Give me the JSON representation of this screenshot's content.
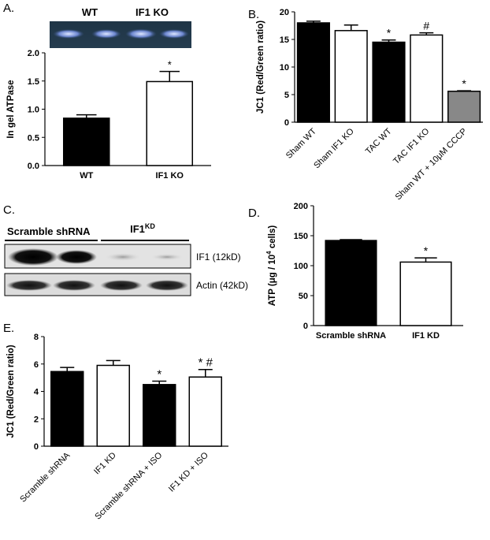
{
  "panels": {
    "A": {
      "label": "A.",
      "gel_lanes_header": [
        "WT",
        "IF1 KO"
      ],
      "chart_data": {
        "type": "bar",
        "categories": [
          "WT",
          "IF1 KO"
        ],
        "values": [
          0.84,
          1.49
        ],
        "errors": [
          0.06,
          0.18
        ],
        "fills": [
          "#000000",
          "#ffffff"
        ],
        "significance": [
          "",
          "*"
        ],
        "ylabel": "In gel ATPase",
        "ylim": [
          0,
          2.0
        ],
        "yticks": [
          "0.0",
          "0.5",
          "1.0",
          "1.5",
          "2.0"
        ],
        "ytick_values": [
          0,
          0.5,
          1.0,
          1.5,
          2.0
        ]
      }
    },
    "B": {
      "label": "B.",
      "chart_data": {
        "type": "bar",
        "categories": [
          "Sham WT",
          "Sham IF1 KO",
          "TAC WT",
          "TAC IF1 KO",
          "Sham WT + 10μM CCCP"
        ],
        "values": [
          18.0,
          16.6,
          14.5,
          15.8,
          5.6
        ],
        "errors": [
          0.3,
          1.0,
          0.4,
          0.4,
          0.1
        ],
        "fills": [
          "#000000",
          "#ffffff",
          "#000000",
          "#ffffff",
          "#888888"
        ],
        "significance": [
          "",
          "",
          "*",
          "#",
          "*"
        ],
        "ylabel": "JC1 (Red/Green ratio)",
        "ylim": [
          0,
          20
        ],
        "yticks": [
          "0",
          "5",
          "10",
          "15",
          "20"
        ],
        "ytick_values": [
          0,
          5,
          10,
          15,
          20
        ]
      }
    },
    "C": {
      "label": "C.",
      "group_labels": [
        "Scramble shRNA",
        "IF1"
      ],
      "group_label_sup": "KD",
      "bands": [
        {
          "label": "IF1 (12kD)"
        },
        {
          "label": "Actin (42kD)"
        }
      ]
    },
    "D": {
      "label": "D.",
      "chart_data": {
        "type": "bar",
        "categories": [
          "Scramble shRNA",
          "IF1 KD"
        ],
        "values": [
          142,
          106
        ],
        "errors": [
          1.5,
          7
        ],
        "fills": [
          "#000000",
          "#ffffff"
        ],
        "significance": [
          "",
          "*"
        ],
        "ylabel": "ATP (μg / 10",
        "ylabel_sup": "4",
        "ylabel_end": " cells)",
        "ylim": [
          0,
          200
        ],
        "yticks": [
          "0",
          "50",
          "100",
          "150",
          "200"
        ],
        "ytick_values": [
          0,
          50,
          100,
          150,
          200
        ]
      }
    },
    "E": {
      "label": "E.",
      "chart_data": {
        "type": "bar",
        "categories": [
          "Scramble shRNA",
          "IF1 KD",
          "Scramble shRNA + ISO",
          "IF1 KD + ISO"
        ],
        "values": [
          5.45,
          5.9,
          4.5,
          5.05
        ],
        "errors": [
          0.3,
          0.35,
          0.25,
          0.55
        ],
        "fills": [
          "#000000",
          "#ffffff",
          "#000000",
          "#ffffff"
        ],
        "significance": [
          "",
          "",
          "*",
          "* #"
        ],
        "ylabel": "JC1 (Red/Green ratio)",
        "ylim": [
          0,
          8
        ],
        "yticks": [
          "0",
          "2",
          "4",
          "6",
          "8"
        ],
        "ytick_values": [
          0,
          2,
          4,
          6,
          8
        ]
      }
    }
  }
}
